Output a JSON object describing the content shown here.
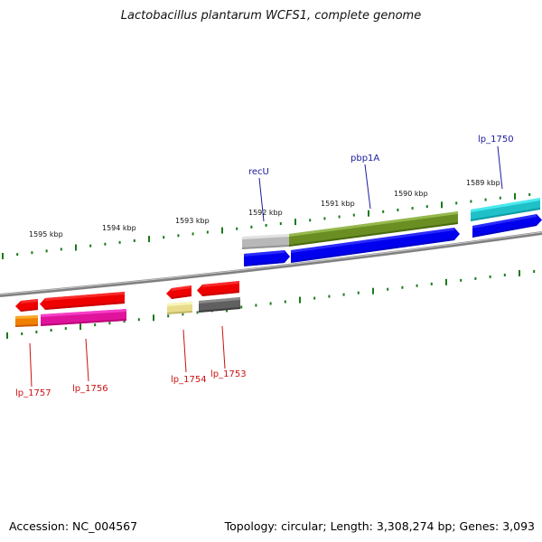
{
  "title": "Lactobacillus plantarum WCFS1, complete genome",
  "footer": {
    "accession": "Accession: NC_004567",
    "summary": "Topology: circular; Length: 3,308,274 bp; Genes: 3,093"
  },
  "kbp_labels": [
    "1595 kbp",
    "1594 kbp",
    "1593 kbp",
    "1592 kbp",
    "1591 kbp",
    "1590 kbp",
    "1589 kbp"
  ],
  "upper_gene_labels": [
    "recU",
    "pbp1A",
    "lp_1750"
  ],
  "lower_gene_labels": [
    "lp_1757",
    "lp_1756",
    "lp_1754",
    "lp_1753"
  ],
  "colors": {
    "backbone": "#808080",
    "tick": "#1a7a1a",
    "upper_label": "#1a1aa0",
    "lower_label": "#cc1111",
    "cds_blue": "#0000ee",
    "cds_red": "#ee0000",
    "olive": "#6b8e23",
    "cyan": "#20c0c8",
    "grey_light": "#b8b8b8",
    "orange": "#f08000",
    "magenta": "#e0149c",
    "khaki": "#e8dc8c",
    "grey_dark": "#606060"
  }
}
